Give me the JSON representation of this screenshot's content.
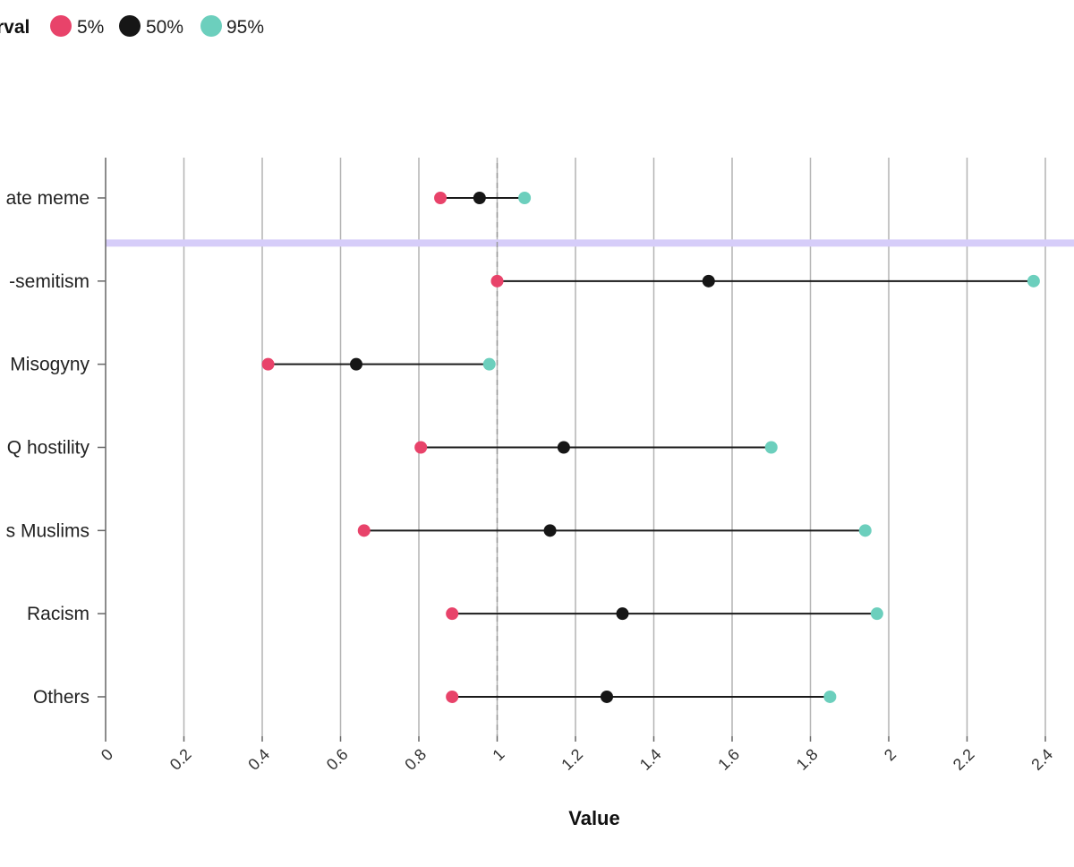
{
  "legend": {
    "title": "rval",
    "items": [
      {
        "label": "5%",
        "color": "#e8436a"
      },
      {
        "label": "50%",
        "color": "#161616"
      },
      {
        "label": "95%",
        "color": "#6ccfbd"
      }
    ]
  },
  "chart_data": {
    "type": "scatter",
    "subtype": "dumbbell",
    "xlabel": "Value",
    "ylabel": "",
    "xlim": [
      0,
      2.4
    ],
    "x_ticks": [
      "0",
      "0.2",
      "0.4",
      "0.6",
      "0.8",
      "1",
      "1.2",
      "1.4",
      "1.6",
      "1.8",
      "2",
      "2.2",
      "2.4"
    ],
    "x_tick_values": [
      0,
      0.2,
      0.4,
      0.6,
      0.8,
      1.0,
      1.2,
      1.4,
      1.6,
      1.8,
      2.0,
      2.2,
      2.4
    ],
    "reference_line": 1.0,
    "grid": "vertical",
    "legend_position": "top-left",
    "categories": [
      "ate meme",
      "-semitism",
      "Misogyny",
      "Q hostility",
      "s Muslims",
      "Racism",
      "Others"
    ],
    "series": [
      {
        "name": "5%",
        "color": "#e8436a",
        "values": [
          0.855,
          1.0,
          0.415,
          0.805,
          0.66,
          0.885,
          0.885
        ]
      },
      {
        "name": "50%",
        "color": "#161616",
        "values": [
          0.955,
          1.54,
          0.64,
          1.17,
          1.135,
          1.32,
          1.28
        ]
      },
      {
        "name": "95%",
        "color": "#6ccfbd",
        "values": [
          1.07,
          2.37,
          0.98,
          1.7,
          1.94,
          1.97,
          1.85
        ]
      }
    ]
  }
}
